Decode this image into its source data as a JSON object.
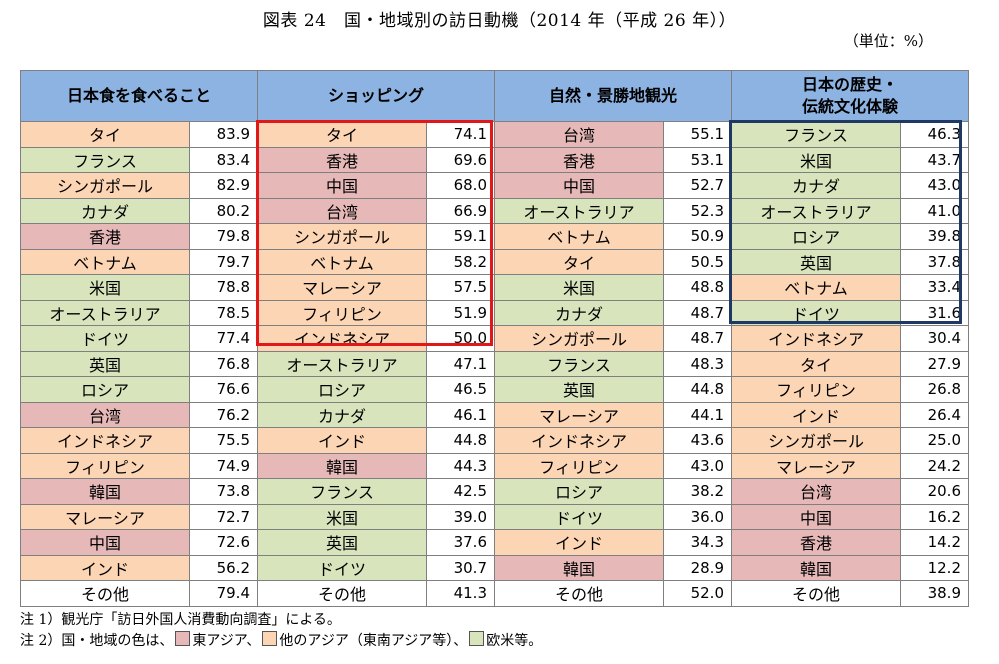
{
  "title": "図表 24　国・地域別の訪日動機（2014 年（平成 26 年））",
  "unit": "（単位：%）",
  "columns": [
    {
      "header": "日本食を食べること",
      "header2": "",
      "rows": [
        {
          "name": "タイ",
          "value": "83.9",
          "cat": "oa"
        },
        {
          "name": "フランス",
          "value": "83.4",
          "cat": "we"
        },
        {
          "name": "シンガポール",
          "value": "82.9",
          "cat": "oa"
        },
        {
          "name": "カナダ",
          "value": "80.2",
          "cat": "we"
        },
        {
          "name": "香港",
          "value": "79.8",
          "cat": "ea"
        },
        {
          "name": "ベトナム",
          "value": "79.7",
          "cat": "oa"
        },
        {
          "name": "米国",
          "value": "78.8",
          "cat": "we"
        },
        {
          "name": "オーストラリア",
          "value": "78.5",
          "cat": "we"
        },
        {
          "name": "ドイツ",
          "value": "77.4",
          "cat": "we"
        },
        {
          "name": "英国",
          "value": "76.8",
          "cat": "we"
        },
        {
          "name": "ロシア",
          "value": "76.6",
          "cat": "we"
        },
        {
          "name": "台湾",
          "value": "76.2",
          "cat": "ea"
        },
        {
          "name": "インドネシア",
          "value": "75.5",
          "cat": "oa"
        },
        {
          "name": "フィリピン",
          "value": "74.9",
          "cat": "oa"
        },
        {
          "name": "韓国",
          "value": "73.8",
          "cat": "ea"
        },
        {
          "name": "マレーシア",
          "value": "72.7",
          "cat": "oa"
        },
        {
          "name": "中国",
          "value": "72.6",
          "cat": "ea"
        },
        {
          "name": "インド",
          "value": "56.2",
          "cat": "oa"
        },
        {
          "name": "その他",
          "value": "79.4",
          "cat": "ot"
        }
      ]
    },
    {
      "header": "ショッピング",
      "header2": "",
      "rows": [
        {
          "name": "タイ",
          "value": "74.1",
          "cat": "oa"
        },
        {
          "name": "香港",
          "value": "69.6",
          "cat": "ea"
        },
        {
          "name": "中国",
          "value": "68.0",
          "cat": "ea"
        },
        {
          "name": "台湾",
          "value": "66.9",
          "cat": "ea"
        },
        {
          "name": "シンガポール",
          "value": "59.1",
          "cat": "oa"
        },
        {
          "name": "ベトナム",
          "value": "58.2",
          "cat": "oa"
        },
        {
          "name": "マレーシア",
          "value": "57.5",
          "cat": "oa"
        },
        {
          "name": "フィリピン",
          "value": "51.9",
          "cat": "oa"
        },
        {
          "name": "インドネシア",
          "value": "50.0",
          "cat": "oa"
        },
        {
          "name": "オーストラリア",
          "value": "47.1",
          "cat": "we"
        },
        {
          "name": "ロシア",
          "value": "46.5",
          "cat": "we"
        },
        {
          "name": "カナダ",
          "value": "46.1",
          "cat": "we"
        },
        {
          "name": "インド",
          "value": "44.8",
          "cat": "oa"
        },
        {
          "name": "韓国",
          "value": "44.3",
          "cat": "ea"
        },
        {
          "name": "フランス",
          "value": "42.5",
          "cat": "we"
        },
        {
          "name": "米国",
          "value": "39.0",
          "cat": "we"
        },
        {
          "name": "英国",
          "value": "37.6",
          "cat": "we"
        },
        {
          "name": "ドイツ",
          "value": "30.7",
          "cat": "we"
        },
        {
          "name": "その他",
          "value": "41.3",
          "cat": "ot"
        }
      ]
    },
    {
      "header": "自然・景勝地観光",
      "header2": "",
      "rows": [
        {
          "name": "台湾",
          "value": "55.1",
          "cat": "ea"
        },
        {
          "name": "香港",
          "value": "53.1",
          "cat": "ea"
        },
        {
          "name": "中国",
          "value": "52.7",
          "cat": "ea"
        },
        {
          "name": "オーストラリア",
          "value": "52.3",
          "cat": "we"
        },
        {
          "name": "ベトナム",
          "value": "50.9",
          "cat": "oa"
        },
        {
          "name": "タイ",
          "value": "50.5",
          "cat": "oa"
        },
        {
          "name": "米国",
          "value": "48.8",
          "cat": "we"
        },
        {
          "name": "カナダ",
          "value": "48.7",
          "cat": "we"
        },
        {
          "name": "シンガポール",
          "value": "48.7",
          "cat": "oa"
        },
        {
          "name": "フランス",
          "value": "48.3",
          "cat": "we"
        },
        {
          "name": "英国",
          "value": "44.8",
          "cat": "we"
        },
        {
          "name": "マレーシア",
          "value": "44.1",
          "cat": "oa"
        },
        {
          "name": "インドネシア",
          "value": "43.6",
          "cat": "oa"
        },
        {
          "name": "フィリピン",
          "value": "43.0",
          "cat": "oa"
        },
        {
          "name": "ロシア",
          "value": "38.2",
          "cat": "we"
        },
        {
          "name": "ドイツ",
          "value": "36.0",
          "cat": "we"
        },
        {
          "name": "インド",
          "value": "34.3",
          "cat": "oa"
        },
        {
          "name": "韓国",
          "value": "28.9",
          "cat": "ea"
        },
        {
          "name": "その他",
          "value": "52.0",
          "cat": "ot"
        }
      ]
    },
    {
      "header": "日本の歴史・",
      "header2": "伝統文化体験",
      "rows": [
        {
          "name": "フランス",
          "value": "46.3",
          "cat": "we"
        },
        {
          "name": "米国",
          "value": "43.7",
          "cat": "we"
        },
        {
          "name": "カナダ",
          "value": "43.0",
          "cat": "we"
        },
        {
          "name": "オーストラリア",
          "value": "41.0",
          "cat": "we"
        },
        {
          "name": "ロシア",
          "value": "39.8",
          "cat": "we"
        },
        {
          "name": "英国",
          "value": "37.8",
          "cat": "we"
        },
        {
          "name": "ベトナム",
          "value": "33.4",
          "cat": "oa"
        },
        {
          "name": "ドイツ",
          "value": "31.6",
          "cat": "we"
        },
        {
          "name": "インドネシア",
          "value": "30.4",
          "cat": "oa"
        },
        {
          "name": "タイ",
          "value": "27.9",
          "cat": "oa"
        },
        {
          "name": "フィリピン",
          "value": "26.8",
          "cat": "oa"
        },
        {
          "name": "インド",
          "value": "26.4",
          "cat": "oa"
        },
        {
          "name": "シンガポール",
          "value": "25.0",
          "cat": "oa"
        },
        {
          "name": "マレーシア",
          "value": "24.2",
          "cat": "oa"
        },
        {
          "name": "台湾",
          "value": "20.6",
          "cat": "ea"
        },
        {
          "name": "中国",
          "value": "16.2",
          "cat": "ea"
        },
        {
          "name": "香港",
          "value": "14.2",
          "cat": "ea"
        },
        {
          "name": "韓国",
          "value": "12.2",
          "cat": "ea"
        },
        {
          "name": "その他",
          "value": "38.9",
          "cat": "ot"
        }
      ]
    }
  ],
  "notes": {
    "note1": "注 1）観光庁「訪日外国人消費動向調査」による。",
    "note2_prefix": "注 2）国・地域の色は、",
    "legend_ea": "東アジア、",
    "legend_oa": "他のアジア（東南アジア等）、",
    "legend_we": "欧米等。"
  },
  "colors": {
    "east_asia": "#e6b9b8",
    "other_asia": "#fcd5b4",
    "west": "#d8e4bc",
    "header": "#8db3e2",
    "highlight_red": "#e2171a",
    "highlight_blue": "#1f3864"
  }
}
